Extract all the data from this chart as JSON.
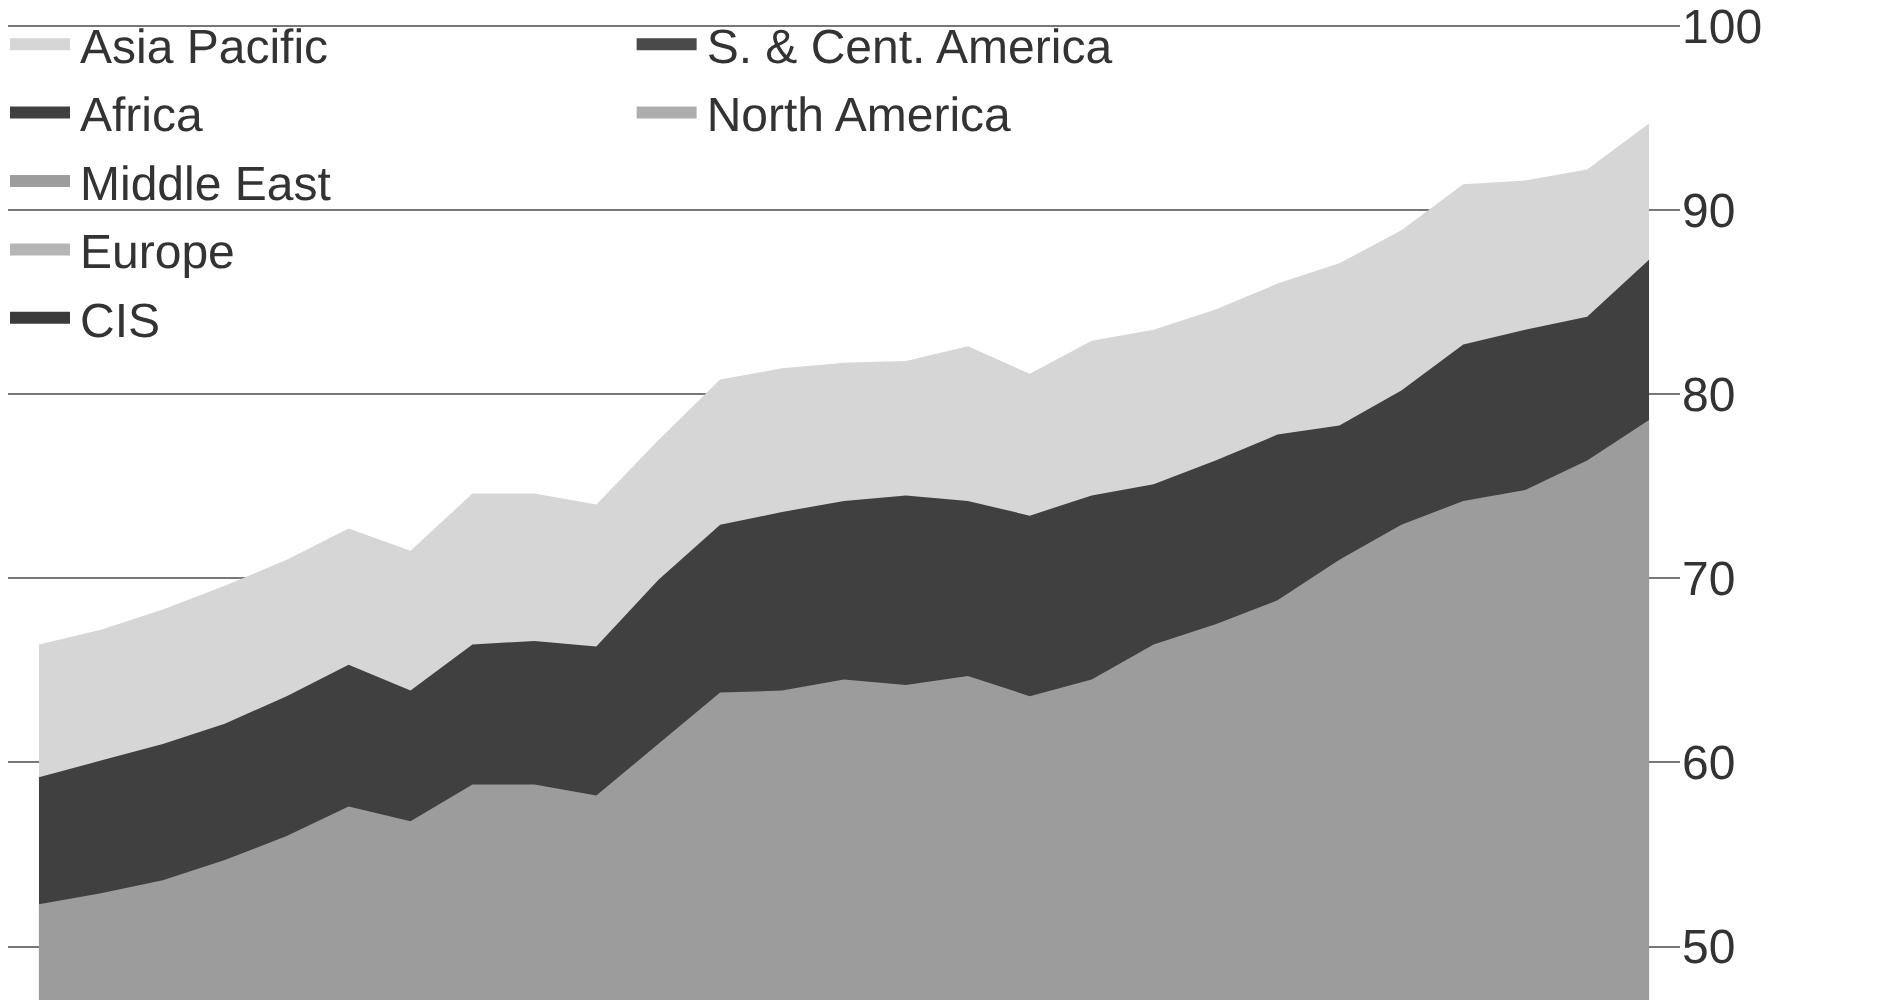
{
  "chart_data": {
    "type": "area",
    "stacked": false,
    "grid": "y",
    "legend": "top left",
    "tick_labels": "y",
    "categories": [
      null,
      null,
      null,
      null,
      null,
      null,
      null,
      null,
      null,
      null,
      null,
      null,
      null,
      null,
      null,
      null,
      null,
      null,
      null,
      null,
      null,
      null,
      null,
      null,
      null,
      null,
      null
    ],
    "ylim": [
      47.1,
      101.4
    ],
    "yticks": [
      50,
      60,
      70,
      80,
      90,
      100
    ],
    "series": [
      {
        "name": "Asia Pacific",
        "color": "#d6d6d6",
        "values": [
          66.4,
          67.2,
          68.3,
          69.6,
          71.0,
          72.7,
          71.5,
          74.6,
          74.6,
          74.0,
          77.5,
          80.8,
          81.4,
          81.7,
          81.8,
          82.6,
          81.1,
          82.9,
          83.5,
          84.6,
          86.0,
          87.1,
          88.9,
          91.4,
          91.6,
          92.2,
          94.7
        ]
      },
      {
        "name": "Africa",
        "color": "#404040",
        "values": [
          59.2,
          60.1,
          61.0,
          62.1,
          63.6,
          65.3,
          63.9,
          66.4,
          66.6,
          66.3,
          69.9,
          72.9,
          73.6,
          74.2,
          74.5,
          74.2,
          73.4,
          74.5,
          75.1,
          76.4,
          77.8,
          78.3,
          80.2,
          82.7,
          83.5,
          84.2,
          87.3
        ]
      },
      {
        "name": "Middle East",
        "color": "#9c9c9c",
        "values": [
          52.3,
          52.9,
          53.6,
          54.7,
          56.0,
          57.6,
          56.8,
          58.8,
          58.8,
          58.2,
          61.0,
          63.8,
          63.9,
          64.5,
          64.2,
          64.7,
          63.6,
          64.5,
          66.4,
          67.5,
          68.8,
          71.0,
          72.9,
          74.2,
          74.8,
          76.4,
          78.6
        ]
      },
      {
        "name": "Europe",
        "color": "#b5b5b5",
        "values": [
          null,
          null,
          null,
          null,
          null,
          null,
          null,
          null,
          null,
          null,
          null,
          null,
          null,
          null,
          null,
          null,
          null,
          null,
          null,
          null,
          null,
          null,
          null,
          null,
          null,
          null,
          null
        ]
      },
      {
        "name": "CIS",
        "color": "#3a3a3a",
        "values": [
          null,
          null,
          null,
          null,
          null,
          null,
          null,
          null,
          null,
          null,
          null,
          null,
          null,
          null,
          null,
          null,
          null,
          null,
          null,
          null,
          null,
          null,
          null,
          null,
          null,
          null,
          null
        ]
      },
      {
        "name": "S. & Cent. America",
        "color": "#4a4a4a",
        "values": [
          null,
          null,
          null,
          null,
          null,
          null,
          null,
          null,
          null,
          null,
          null,
          null,
          null,
          null,
          null,
          null,
          null,
          null,
          null,
          null,
          null,
          null,
          null,
          null,
          null,
          null,
          null
        ]
      },
      {
        "name": "North America",
        "color": "#adadad",
        "values": [
          null,
          null,
          null,
          null,
          null,
          null,
          null,
          null,
          null,
          null,
          null,
          null,
          null,
          null,
          null,
          null,
          null,
          null,
          null,
          null,
          null,
          null,
          null,
          null,
          null,
          null,
          null
        ]
      }
    ]
  }
}
